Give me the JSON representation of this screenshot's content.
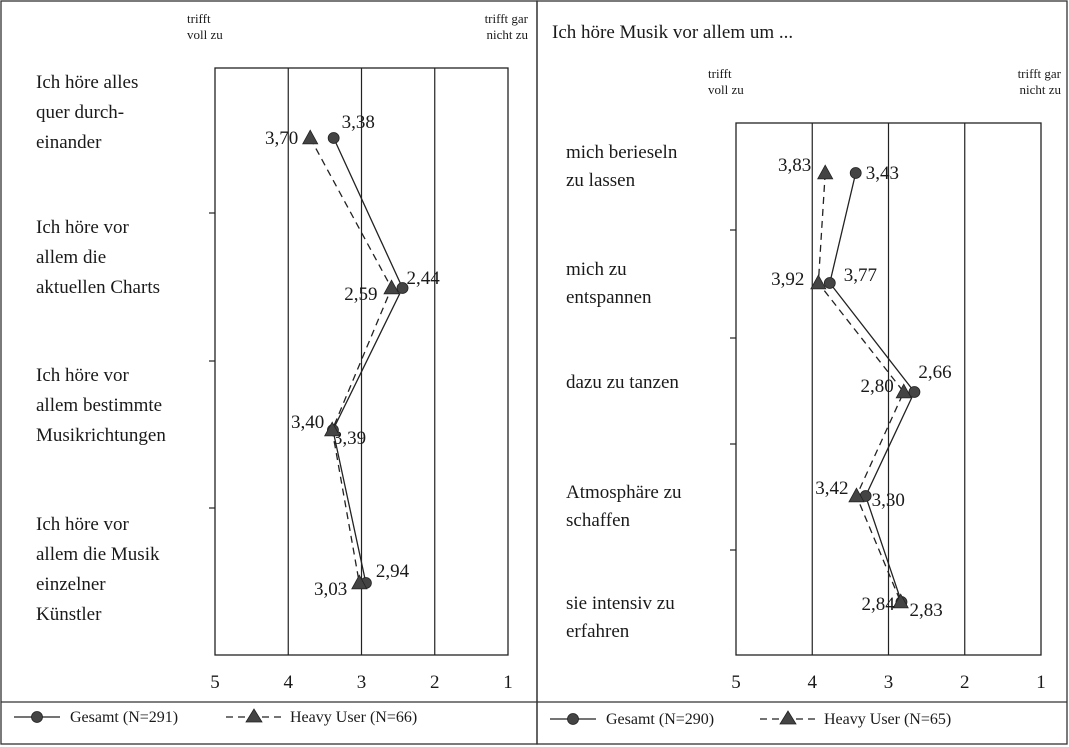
{
  "chart_data": [
    {
      "type": "line",
      "orientation": "horizontal-values",
      "title": "",
      "scale_labels": {
        "left": [
          "trifft",
          "voll zu"
        ],
        "right": [
          "trifft gar",
          "nicht zu"
        ]
      },
      "x_ticks": [
        5,
        4,
        3,
        2,
        1
      ],
      "xlim": [
        5,
        1
      ],
      "categories": [
        [
          "Ich höre alles",
          "quer durch-",
          "einander"
        ],
        [
          "Ich höre vor",
          "allem die",
          "aktuellen Charts"
        ],
        [
          "Ich höre vor",
          "allem bestimmte",
          "Musikrichtungen"
        ],
        [
          "Ich höre vor",
          "allem die Musik",
          "einzelner",
          "Künstler"
        ]
      ],
      "series": [
        {
          "name": "Gesamt (N=291)",
          "marker": "circle",
          "line": "solid",
          "values": [
            3.38,
            2.44,
            3.39,
            2.94
          ],
          "labels": [
            "3,38",
            "2,44",
            "3,39",
            "2,94"
          ]
        },
        {
          "name": "Heavy User (N=66)",
          "marker": "triangle",
          "line": "dashed",
          "values": [
            3.7,
            2.59,
            3.4,
            3.03
          ],
          "labels": [
            "3,70",
            "2,59",
            "3,40",
            "3,03"
          ]
        }
      ]
    },
    {
      "type": "line",
      "orientation": "horizontal-values",
      "title": "Ich höre Musik vor allem um ...",
      "scale_labels": {
        "left": [
          "trifft",
          "voll zu"
        ],
        "right": [
          "trifft gar",
          "nicht zu"
        ]
      },
      "x_ticks": [
        5,
        4,
        3,
        2,
        1
      ],
      "xlim": [
        5,
        1
      ],
      "categories": [
        [
          "mich berieseln",
          "zu lassen"
        ],
        [
          "mich zu",
          "entspannen"
        ],
        [
          "dazu zu tanzen"
        ],
        [
          "Atmosphäre zu",
          "schaffen"
        ],
        [
          "sie intensiv zu",
          "erfahren"
        ]
      ],
      "series": [
        {
          "name": "Gesamt (N=290)",
          "marker": "circle",
          "line": "solid",
          "values": [
            3.43,
            3.77,
            2.66,
            3.3,
            2.83
          ],
          "labels": [
            "3,43",
            "3,77",
            "2,66",
            "3,30",
            "2,83"
          ]
        },
        {
          "name": "Heavy User (N=65)",
          "marker": "triangle",
          "line": "dashed",
          "values": [
            3.83,
            3.92,
            2.8,
            3.42,
            2.84
          ],
          "labels": [
            "3,83",
            "3,92",
            "2,80",
            "3,42",
            "2,84"
          ]
        }
      ]
    }
  ]
}
